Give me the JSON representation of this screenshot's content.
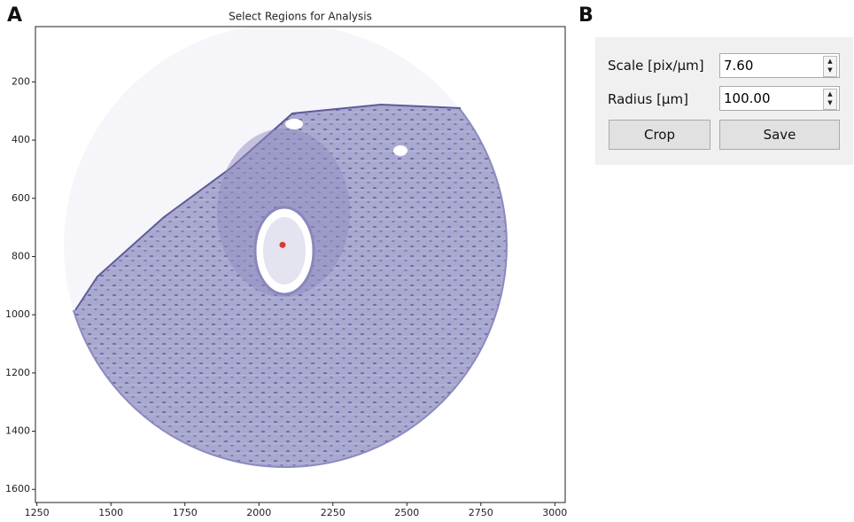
{
  "panels": {
    "a": "A",
    "b": "B"
  },
  "chart_data": {
    "type": "image",
    "title": "Select Regions for Analysis",
    "xlim": [
      1245,
      3035
    ],
    "ylim": [
      1645,
      10
    ],
    "xticks": [
      1250,
      1500,
      1750,
      2000,
      2250,
      2500,
      2750,
      3000
    ],
    "yticks": [
      200,
      400,
      600,
      800,
      1000,
      1200,
      1400,
      1600
    ],
    "point": {
      "x": 2080,
      "y": 760,
      "color": "#d9382e"
    }
  },
  "controls": {
    "scale": {
      "label": "Scale [pix/µm]",
      "value": "7.60"
    },
    "radius": {
      "label": "Radius [µm]",
      "value": "100.00"
    },
    "buttons": [
      "Crop",
      "Save"
    ]
  }
}
